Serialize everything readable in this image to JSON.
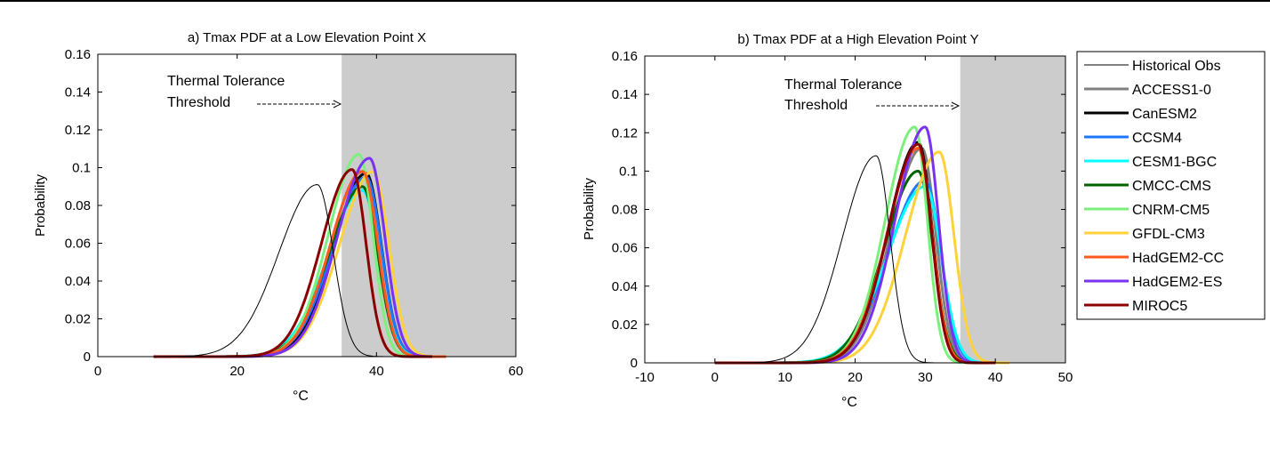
{
  "colors": {
    "Historical Obs": "#000000",
    "ACCESS1-0": "#808080",
    "CanESM2": "#000000",
    "CCSM4": "#1e78ff",
    "CESM1-BGC": "#00ffff",
    "CMCC-CMS": "#006400",
    "CNRM-CM5": "#7cf07c",
    "GFDL-CM3": "#ffd23c",
    "HadGEM2-CC": "#ff5a1e",
    "HadGEM2-ES": "#7832f0",
    "MIROC5": "#8b0000",
    "shade": "#cccccc"
  },
  "legend": {
    "placement": "right",
    "entries": [
      "Historical Obs",
      "ACCESS1-0",
      "CanESM2",
      "CCSM4",
      "CESM1-BGC",
      "CMCC-CMS",
      "CNRM-CM5",
      "GFDL-CM3",
      "HadGEM2-CC",
      "HadGEM2-ES",
      "MIROC5"
    ]
  },
  "chart_data": [
    {
      "type": "line",
      "title": "a) Tmax PDF at a Low Elevation Point X",
      "xlabel": "°C",
      "ylabel": "Probability",
      "xlim": [
        0,
        60
      ],
      "ylim": [
        0,
        0.16
      ],
      "xticks": [
        0,
        20,
        40,
        60
      ],
      "yticks": [
        0,
        0.02,
        0.04,
        0.06,
        0.08,
        0.1,
        0.12,
        0.14,
        0.16
      ],
      "grid": false,
      "threshold": 35,
      "annotation": [
        "Thermal Tolerance",
        "Threshold"
      ],
      "series": [
        {
          "name": "Historical Obs",
          "peak_x": 31.5,
          "peak_y": 0.091,
          "x_start": 2,
          "x_end": 41,
          "sigma_left": 5.5,
          "sigma_right": 2.3,
          "width": 1
        },
        {
          "name": "ACCESS1-0",
          "peak_x": 38.0,
          "peak_y": 0.098,
          "x_start": 8,
          "x_end": 48,
          "sigma_left": 4.6,
          "sigma_right": 2.2,
          "width": 3
        },
        {
          "name": "CanESM2",
          "peak_x": 38.5,
          "peak_y": 0.097,
          "x_start": 8,
          "x_end": 48,
          "sigma_left": 4.6,
          "sigma_right": 2.2,
          "width": 3
        },
        {
          "name": "CCSM4",
          "peak_x": 38.5,
          "peak_y": 0.095,
          "x_start": 8,
          "x_end": 48,
          "sigma_left": 4.8,
          "sigma_right": 2.2,
          "width": 3
        },
        {
          "name": "CESM1-BGC",
          "peak_x": 38.0,
          "peak_y": 0.088,
          "x_start": 8,
          "x_end": 48,
          "sigma_left": 5.0,
          "sigma_right": 2.3,
          "width": 3
        },
        {
          "name": "CMCC-CMS",
          "peak_x": 38.0,
          "peak_y": 0.09,
          "x_start": 8,
          "x_end": 48,
          "sigma_left": 4.8,
          "sigma_right": 2.2,
          "width": 3
        },
        {
          "name": "CNRM-CM5",
          "peak_x": 37.5,
          "peak_y": 0.107,
          "x_start": 8,
          "x_end": 48,
          "sigma_left": 4.4,
          "sigma_right": 2.0,
          "width": 3
        },
        {
          "name": "GFDL-CM3",
          "peak_x": 39.5,
          "peak_y": 0.098,
          "x_start": 8,
          "x_end": 48,
          "sigma_left": 4.8,
          "sigma_right": 2.3,
          "width": 3
        },
        {
          "name": "HadGEM2-CC",
          "peak_x": 38.0,
          "peak_y": 0.098,
          "x_start": 8,
          "x_end": 50,
          "sigma_left": 4.6,
          "sigma_right": 2.2,
          "width": 3
        },
        {
          "name": "HadGEM2-ES",
          "peak_x": 39.0,
          "peak_y": 0.105,
          "x_start": 8,
          "x_end": 48,
          "sigma_left": 4.6,
          "sigma_right": 2.2,
          "width": 3
        },
        {
          "name": "MIROC5",
          "peak_x": 36.5,
          "peak_y": 0.099,
          "x_start": 8,
          "x_end": 48,
          "sigma_left": 4.4,
          "sigma_right": 2.0,
          "width": 3
        }
      ]
    },
    {
      "type": "line",
      "title": "b) Tmax PDF at a High Elevation Point Y",
      "xlabel": "°C",
      "ylabel": "Probability",
      "xlim": [
        -10,
        50
      ],
      "ylim": [
        0,
        0.16
      ],
      "xticks": [
        -10,
        0,
        10,
        20,
        30,
        40,
        50
      ],
      "yticks": [
        0,
        0.02,
        0.04,
        0.06,
        0.08,
        0.1,
        0.12,
        0.14,
        0.16
      ],
      "grid": false,
      "threshold": 35,
      "annotation": [
        "Thermal Tolerance",
        "Threshold"
      ],
      "series": [
        {
          "name": "Historical Obs",
          "peak_x": 23.0,
          "peak_y": 0.108,
          "x_start": -2,
          "x_end": 33,
          "sigma_left": 4.8,
          "sigma_right": 2.0,
          "width": 1
        },
        {
          "name": "ACCESS1-0",
          "peak_x": 29.5,
          "peak_y": 0.112,
          "x_start": 0,
          "x_end": 40,
          "sigma_left": 4.4,
          "sigma_right": 2.0,
          "width": 3
        },
        {
          "name": "CanESM2",
          "peak_x": 29.0,
          "peak_y": 0.115,
          "x_start": 0,
          "x_end": 40,
          "sigma_left": 4.3,
          "sigma_right": 2.0,
          "width": 3
        },
        {
          "name": "CCSM4",
          "peak_x": 30.0,
          "peak_y": 0.095,
          "x_start": 0,
          "x_end": 40,
          "sigma_left": 5.2,
          "sigma_right": 2.2,
          "width": 3
        },
        {
          "name": "CESM1-BGC",
          "peak_x": 30.0,
          "peak_y": 0.092,
          "x_start": 0,
          "x_end": 40,
          "sigma_left": 5.4,
          "sigma_right": 2.3,
          "width": 3
        },
        {
          "name": "CMCC-CMS",
          "peak_x": 29.0,
          "peak_y": 0.1,
          "x_start": 0,
          "x_end": 40,
          "sigma_left": 4.8,
          "sigma_right": 2.1,
          "width": 3
        },
        {
          "name": "CNRM-CM5",
          "peak_x": 28.5,
          "peak_y": 0.123,
          "x_start": 0,
          "x_end": 40,
          "sigma_left": 4.2,
          "sigma_right": 1.8,
          "width": 3
        },
        {
          "name": "GFDL-CM3",
          "peak_x": 32.0,
          "peak_y": 0.11,
          "x_start": 0,
          "x_end": 42,
          "sigma_left": 4.8,
          "sigma_right": 2.1,
          "width": 3
        },
        {
          "name": "HadGEM2-CC",
          "peak_x": 29.0,
          "peak_y": 0.112,
          "x_start": 0,
          "x_end": 40,
          "sigma_left": 4.4,
          "sigma_right": 2.0,
          "width": 3
        },
        {
          "name": "HadGEM2-ES",
          "peak_x": 30.0,
          "peak_y": 0.123,
          "x_start": 0,
          "x_end": 40,
          "sigma_left": 4.3,
          "sigma_right": 1.9,
          "width": 3
        },
        {
          "name": "MIROC5",
          "peak_x": 29.0,
          "peak_y": 0.114,
          "x_start": 0,
          "x_end": 40,
          "sigma_left": 4.3,
          "sigma_right": 1.9,
          "width": 3
        }
      ]
    }
  ]
}
